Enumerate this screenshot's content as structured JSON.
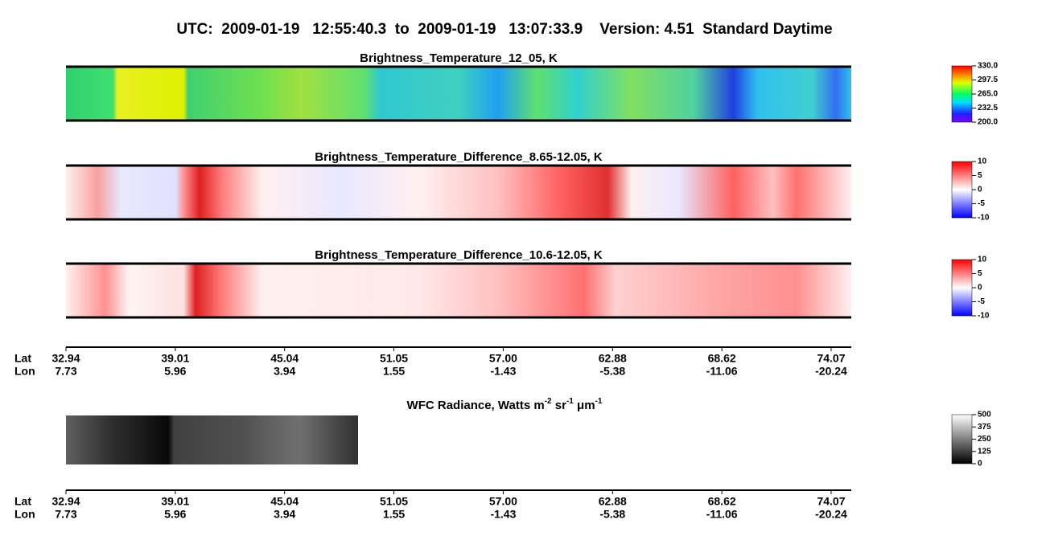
{
  "header": {
    "title": "UTC:  2009-01-19   12:55:40.3  to  2009-01-19   13:07:33.9    Version: 4.51  Standard Daytime"
  },
  "panels": [
    {
      "title": "Brightness_Temperature_12_05, K",
      "colorbar": [
        "330.0",
        "297.5",
        "265.0",
        "232.5",
        "200.0"
      ]
    },
    {
      "title": "Brightness_Temperature_Difference_8.65-12.05, K",
      "colorbar": [
        "10",
        "5",
        "0",
        "-5",
        "-10"
      ]
    },
    {
      "title": "Brightness_Temperature_Difference_10.6-12.05, K",
      "colorbar": [
        "10",
        "5",
        "0",
        "-5",
        "-10"
      ]
    }
  ],
  "axes": [
    {
      "row_labels": [
        "Lat",
        "Lon"
      ],
      "lat": [
        "32.94",
        "39.01",
        "45.04",
        "51.05",
        "57.00",
        "62.88",
        "68.62",
        "74.07"
      ],
      "lon": [
        "7.73",
        "5.96",
        "3.94",
        "1.55",
        "-1.43",
        "-5.38",
        "-11.06",
        "-20.24"
      ]
    },
    {
      "row_labels": [
        "Lat",
        "Lon"
      ],
      "lat": [
        "32.94",
        "39.01",
        "45.04",
        "51.05",
        "57.00",
        "62.88",
        "68.62",
        "74.07"
      ],
      "lon": [
        "7.73",
        "5.96",
        "3.94",
        "1.55",
        "-1.43",
        "-5.38",
        "-11.06",
        "-20.24"
      ]
    }
  ],
  "wfc": {
    "title_parts": [
      "WFC Radiance, Watts m",
      "-2",
      " sr",
      "-1",
      " μm",
      "-1"
    ],
    "colorbar": [
      "500",
      "375",
      "250",
      "125",
      "0"
    ]
  }
}
